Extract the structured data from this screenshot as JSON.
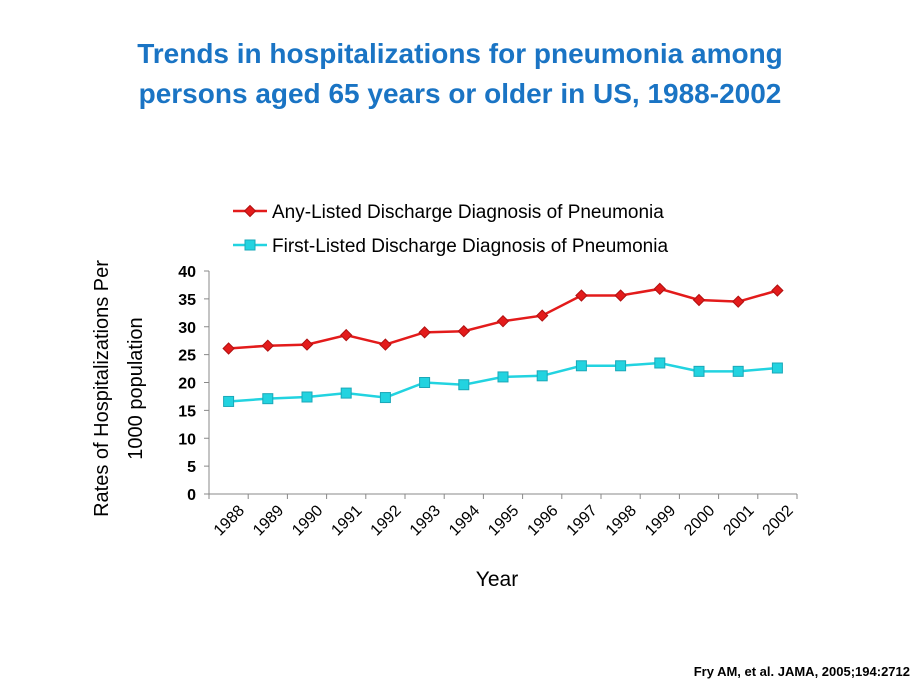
{
  "title": {
    "line1": "Trends in hospitalizations for pneumonia among",
    "line2": "persons aged 65 years or older in US, 1988-2002"
  },
  "citation": "Fry AM, et al. JAMA, 2005;194:2712",
  "colors": {
    "title": "#1a74c4",
    "any_listed": "#e31b1b",
    "first_listed": "#22d3e0"
  },
  "chart_data": {
    "type": "line",
    "xlabel": "Year",
    "ylabel_line1": "Rates of Hospitalizations Per",
    "ylabel_line2": "1000 population",
    "ylim": [
      0,
      40
    ],
    "yticks": [
      0,
      5,
      10,
      15,
      20,
      25,
      30,
      35,
      40
    ],
    "categories": [
      "1988",
      "1989",
      "1990",
      "1991",
      "1992",
      "1993",
      "1994",
      "1995",
      "1996",
      "1997",
      "1998",
      "1999",
      "2000",
      "2001",
      "2002"
    ],
    "legend_position": "top",
    "grid": false,
    "series": [
      {
        "name": "Any-Listed Discharge Diagnosis of Pneumonia",
        "marker": "diamond",
        "values": [
          26.1,
          26.6,
          26.8,
          28.5,
          26.8,
          29.0,
          29.2,
          31.0,
          32.0,
          35.6,
          35.6,
          36.8,
          34.8,
          34.5,
          36.5
        ]
      },
      {
        "name": "First-Listed Discharge Diagnosis of Pneumonia",
        "marker": "square",
        "values": [
          16.6,
          17.1,
          17.4,
          18.1,
          17.3,
          20.0,
          19.6,
          21.0,
          21.2,
          23.0,
          23.0,
          23.5,
          22.0,
          22.0,
          22.6
        ]
      }
    ]
  }
}
